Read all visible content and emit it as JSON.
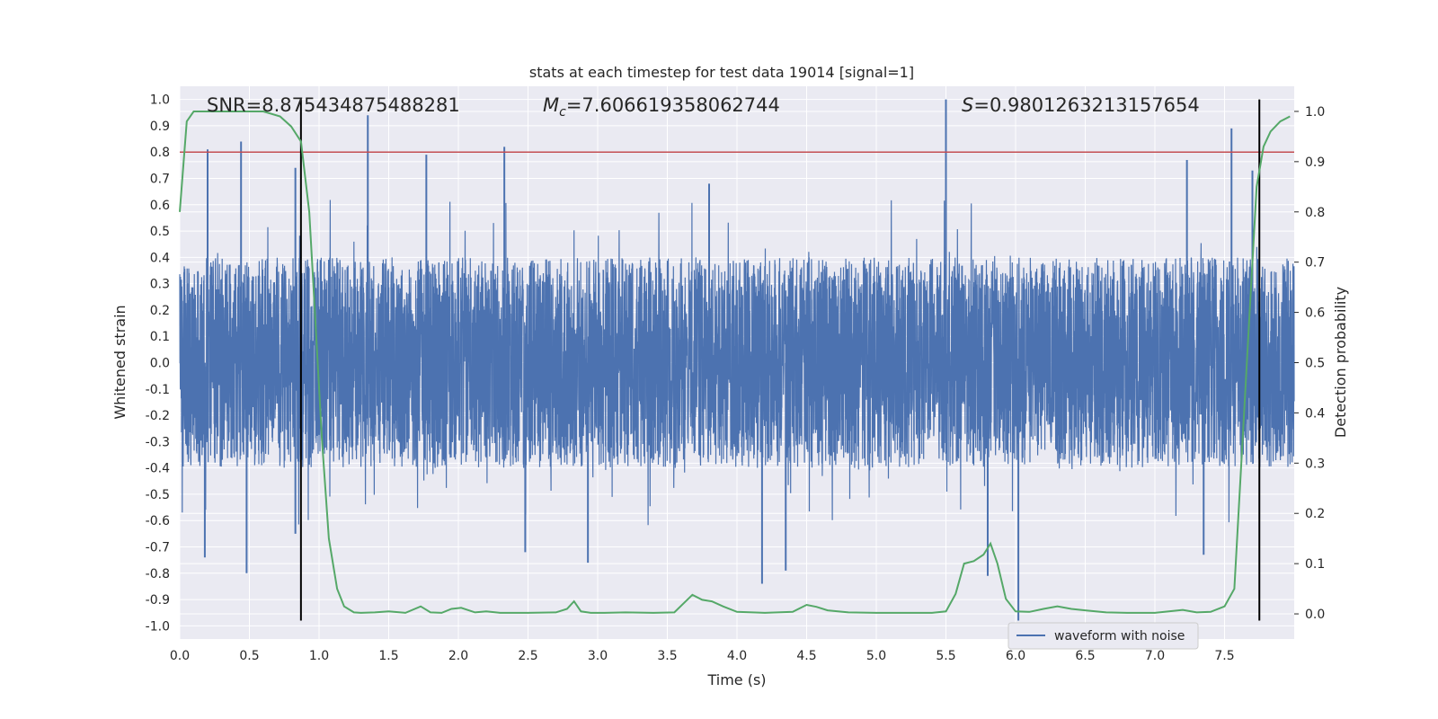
{
  "chart_data": {
    "type": "line",
    "title": "stats at each timestep for test data 19014 [signal=1]",
    "xlabel": "Time (s)",
    "ylabel_left": "Whitened strain",
    "ylabel_right": "Detection probability",
    "xlim": [
      0,
      8
    ],
    "ylim_left": [
      -1.05,
      1.05
    ],
    "ylim_right": [
      -0.05,
      1.05
    ],
    "x_ticks": [
      "0.0",
      "0.5",
      "1.0",
      "1.5",
      "2.0",
      "2.5",
      "3.0",
      "3.5",
      "4.0",
      "4.5",
      "5.0",
      "5.5",
      "6.0",
      "6.5",
      "7.0",
      "7.5"
    ],
    "y_left_ticks": [
      "1.0",
      "0.9",
      "0.8",
      "0.7",
      "0.6",
      "0.5",
      "0.4",
      "0.3",
      "0.2",
      "0.1",
      "0.0",
      "-0.1",
      "-0.2",
      "-0.3",
      "-0.4",
      "-0.5",
      "-0.6",
      "-0.7",
      "-0.8",
      "-0.9",
      "-1.0"
    ],
    "y_right_ticks": [
      "1.0",
      "0.9",
      "0.8",
      "0.7",
      "0.6",
      "0.5",
      "0.4",
      "0.3",
      "0.2",
      "0.1",
      "0.0"
    ],
    "grid": true,
    "annotations": {
      "snr": "SNR=8.875434875488281",
      "mc_prefix": "M",
      "mc_sub": "c",
      "mc_value": "=7.606619358062744",
      "s_prefix": "S",
      "s_value": "=0.9801263213157654"
    },
    "vertical_lines_x": [
      0.87,
      7.75
    ],
    "threshold_line_y": 0.8,
    "legend": {
      "label": "waveform with noise",
      "position": "lower-right"
    },
    "colors": {
      "waveform": "#4c72b0",
      "probability": "#55a868",
      "threshold": "#c44e52",
      "markers": "#000000",
      "plot_bg": "#eaeaf2",
      "grid": "#ffffff"
    },
    "waveform_envelope": {
      "typical_amplitude": 0.4,
      "peaks": [
        {
          "x": 0.2,
          "y": 0.81
        },
        {
          "x": 0.44,
          "y": 0.84
        },
        {
          "x": 0.83,
          "y": 0.74
        },
        {
          "x": 1.35,
          "y": 0.94
        },
        {
          "x": 1.77,
          "y": 0.79
        },
        {
          "x": 2.33,
          "y": 0.82
        },
        {
          "x": 3.8,
          "y": 0.68
        },
        {
          "x": 5.5,
          "y": 1.0
        },
        {
          "x": 7.23,
          "y": 0.77
        },
        {
          "x": 7.55,
          "y": 0.89
        },
        {
          "x": 7.7,
          "y": 0.73
        }
      ],
      "troughs": [
        {
          "x": 0.18,
          "y": -0.74
        },
        {
          "x": 0.48,
          "y": -0.8
        },
        {
          "x": 0.83,
          "y": -0.65
        },
        {
          "x": 2.48,
          "y": -0.72
        },
        {
          "x": 2.93,
          "y": -0.76
        },
        {
          "x": 4.18,
          "y": -0.84
        },
        {
          "x": 4.35,
          "y": -0.79
        },
        {
          "x": 5.8,
          "y": -0.81
        },
        {
          "x": 6.02,
          "y": -0.98
        },
        {
          "x": 7.35,
          "y": -0.73
        }
      ]
    },
    "detection_probability": {
      "x": [
        0.0,
        0.05,
        0.1,
        0.2,
        0.4,
        0.6,
        0.72,
        0.8,
        0.87,
        0.93,
        0.97,
        1.02,
        1.07,
        1.13,
        1.18,
        1.25,
        1.3,
        1.4,
        1.5,
        1.62,
        1.73,
        1.8,
        1.88,
        1.95,
        2.02,
        2.12,
        2.2,
        2.3,
        2.5,
        2.7,
        2.78,
        2.83,
        2.88,
        2.95,
        3.05,
        3.2,
        3.4,
        3.55,
        3.68,
        3.75,
        3.82,
        3.9,
        4.0,
        4.2,
        4.4,
        4.5,
        4.57,
        4.65,
        4.8,
        5.0,
        5.2,
        5.4,
        5.5,
        5.57,
        5.63,
        5.7,
        5.77,
        5.82,
        5.87,
        5.93,
        6.0,
        6.1,
        6.2,
        6.3,
        6.4,
        6.5,
        6.65,
        6.8,
        7.0,
        7.2,
        7.3,
        7.4,
        7.5,
        7.57,
        7.63,
        7.68,
        7.73,
        7.78,
        7.83,
        7.9,
        7.97
      ],
      "y": [
        0.8,
        0.98,
        1.0,
        1.0,
        1.0,
        1.0,
        0.99,
        0.97,
        0.94,
        0.8,
        0.6,
        0.35,
        0.15,
        0.05,
        0.015,
        0.003,
        0.002,
        0.003,
        0.005,
        0.002,
        0.015,
        0.003,
        0.002,
        0.01,
        0.012,
        0.003,
        0.005,
        0.002,
        0.002,
        0.003,
        0.01,
        0.025,
        0.005,
        0.002,
        0.002,
        0.003,
        0.002,
        0.003,
        0.038,
        0.028,
        0.025,
        0.015,
        0.004,
        0.002,
        0.004,
        0.018,
        0.014,
        0.007,
        0.003,
        0.002,
        0.002,
        0.002,
        0.005,
        0.04,
        0.1,
        0.105,
        0.118,
        0.14,
        0.1,
        0.03,
        0.005,
        0.004,
        0.01,
        0.015,
        0.01,
        0.007,
        0.003,
        0.002,
        0.002,
        0.008,
        0.003,
        0.004,
        0.015,
        0.05,
        0.35,
        0.6,
        0.85,
        0.93,
        0.96,
        0.98,
        0.99
      ]
    }
  }
}
